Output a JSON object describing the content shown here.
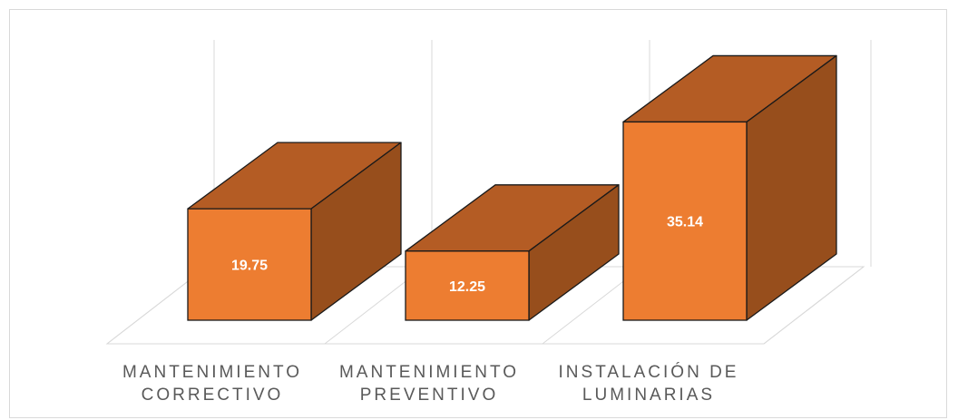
{
  "chart_data": {
    "type": "bar",
    "style": "3d-column",
    "categories": [
      [
        "MANTENIMIENTO",
        "CORRECTIVO"
      ],
      [
        "MANTENIMIENTO",
        "PREVENTIVO"
      ],
      [
        "INSTALACIÓN DE",
        "LUMINARIAS"
      ]
    ],
    "values": [
      19.75,
      12.25,
      35.14
    ],
    "value_labels": [
      "19.75",
      "12.25",
      "35.14"
    ],
    "grid": "vertical",
    "legend": "none",
    "colors": {
      "front": "#ED7D31",
      "top": "#B45C24",
      "side": "#974E1C",
      "outline": "#1a1a1a",
      "gridline": "#d9d9d9",
      "label_text": "#595959",
      "data_label": "#ffffff"
    }
  }
}
